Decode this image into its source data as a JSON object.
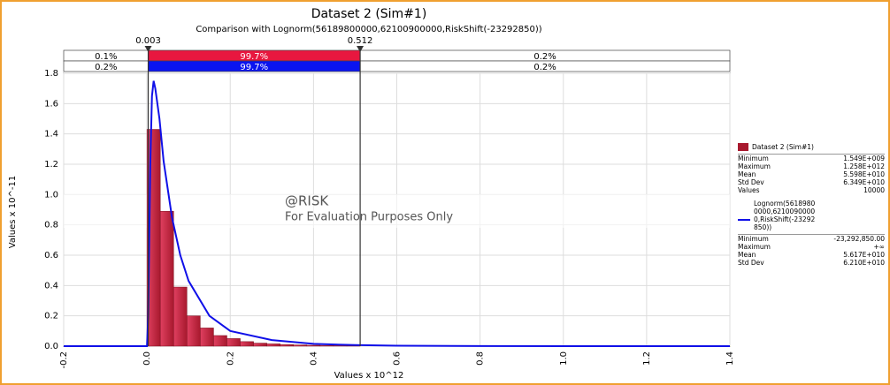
{
  "chart_data": {
    "type": "histogram",
    "title": "Dataset 2 (Sim#1)",
    "subtitle": "Comparison with Lognorm(56189800000,62100900000,RiskShift(-23292850))",
    "xlabel": "Values x 10^12",
    "ylabel": "Values x 10^-11",
    "xlim": [
      -0.2,
      1.4
    ],
    "ylim": [
      0,
      1.8
    ],
    "xticks": [
      -0.2,
      {
        "value": 0,
        "label": "0.0"
      },
      0.2,
      0.4,
      0.6,
      0.8,
      {
        "value": 1,
        "label": "1.0"
      },
      1.2,
      1.4
    ],
    "yticks": [
      {
        "value": 0,
        "label": "0.0"
      },
      0.2,
      0.4,
      0.6,
      0.8,
      {
        "value": 1,
        "label": "1.0"
      },
      1.2,
      1.4,
      1.6,
      1.8
    ],
    "grid": true,
    "delimiters": [
      0.003,
      0.512
    ],
    "delimiter_rows": [
      {
        "color": "#e8173f",
        "values": [
          0.1,
          99.7,
          0.2
        ],
        "value_labels": [
          "0.1%",
          "99.7%",
          "0.2%"
        ]
      },
      {
        "color": "#0a14f0",
        "values": [
          0.2,
          99.7,
          0.2
        ],
        "value_labels": [
          "0.2%",
          "99.7%",
          "0.2%"
        ]
      }
    ],
    "histogram": {
      "name": "Dataset 2 (Sim#1)",
      "color": "#a8192e",
      "bins": [
        0,
        0.032,
        0.064,
        0.096,
        0.128,
        0.16,
        0.192,
        0.224,
        0.256,
        0.288,
        0.32,
        0.352,
        0.384,
        0.416,
        0.448,
        0.48,
        0.512
      ],
      "values": [
        1.43,
        0.89,
        0.39,
        0.2,
        0.12,
        0.07,
        0.05,
        0.03,
        0.02,
        0.015,
        0.01,
        0.008,
        0.006,
        0.005,
        0.004,
        0.003
      ],
      "stats": [
        [
          "Minimum",
          "1.549E+009"
        ],
        [
          "Maximum",
          "1.258E+012"
        ],
        [
          "Mean",
          "5.598E+010"
        ],
        [
          "Std Dev",
          "6.349E+010"
        ],
        [
          "Values",
          "10000"
        ]
      ]
    },
    "curve": {
      "name": "Lognorm(56189800000,62100900000,RiskShift(-23292850))",
      "color": "#1010e8",
      "x": [
        -0.2,
        0,
        0.003,
        0.008,
        0.012,
        0.016,
        0.02,
        0.03,
        0.04,
        0.06,
        0.08,
        0.1,
        0.15,
        0.2,
        0.3,
        0.4,
        0.5,
        0.6,
        0.8,
        1.0,
        1.2,
        1.4
      ],
      "values": [
        0,
        0,
        0.2,
        1.2,
        1.65,
        1.75,
        1.7,
        1.5,
        1.22,
        0.85,
        0.6,
        0.43,
        0.2,
        0.1,
        0.04,
        0.015,
        0.007,
        0.003,
        0.001,
        0,
        0,
        0
      ],
      "stats": [
        [
          "Minimum",
          "-23,292,850.00"
        ],
        [
          "Maximum",
          "+∞"
        ],
        [
          "Mean",
          "5.617E+010"
        ],
        [
          "Std Dev",
          "6.210E+010"
        ]
      ]
    },
    "watermark": [
      "@RISK",
      "For Evaluation Purposes Only"
    ]
  }
}
